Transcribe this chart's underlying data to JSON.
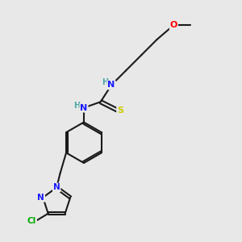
{
  "background_color": "#e8e8e8",
  "bond_color": "#1a1a1a",
  "atom_colors": {
    "N": "#1a1aff",
    "S": "#cccc00",
    "O": "#ff0000",
    "Cl": "#00aa00",
    "H": "#4da6a6",
    "C": "#1a1a1a"
  },
  "bond_width": 1.5,
  "figsize": [
    3.0,
    3.0
  ],
  "dpi": 100
}
